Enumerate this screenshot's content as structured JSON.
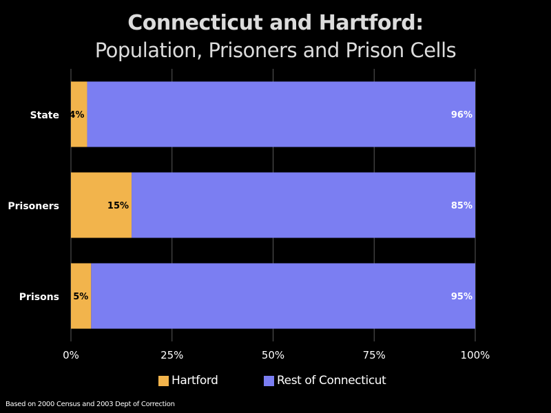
{
  "chart_data": {
    "type": "bar",
    "orientation": "horizontal",
    "stacked": true,
    "percent": true,
    "title": "Connecticut and Hartford:",
    "subtitle": "Population, Prisoners and Prison Cells",
    "categories": [
      "State",
      "Prisoners",
      "Prisons"
    ],
    "series": [
      {
        "name": "Hartford",
        "values": [
          4,
          15,
          5
        ],
        "labels": [
          "4%",
          "15%",
          "5%"
        ],
        "color": "#f2b44c"
      },
      {
        "name": "Rest of Connecticut",
        "values": [
          96,
          85,
          95
        ],
        "labels": [
          "96%",
          "85%",
          "95%"
        ],
        "color": "#7b7ef2"
      }
    ],
    "xticks": [
      "0%",
      "25%",
      "50%",
      "75%",
      "100%"
    ],
    "xlim": [
      0,
      100
    ],
    "grid": true,
    "legend": "bottom",
    "xlabel": "",
    "ylabel": "",
    "footnote": "Based on 2000 Census and 2003 Dept of Correction"
  }
}
